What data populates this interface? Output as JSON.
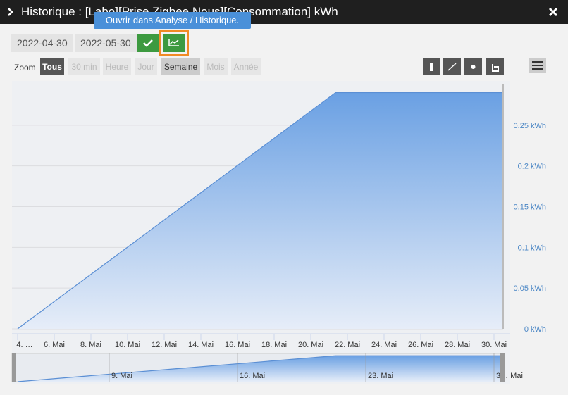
{
  "dialog": {
    "title": "Historique : [Labo][Prise Zigbee Nous][Consommation] kWh",
    "date_start": "2022-04-30",
    "date_end": "2022-05-30",
    "tooltip": "Ouvrir dans Analyse / Historique.",
    "zoom_label": "Zoom",
    "zoom_buttons": [
      "Tous",
      "30 min",
      "Heure",
      "Jour",
      "Semaine",
      "Mois",
      "Année"
    ]
  },
  "chart_data": {
    "type": "area",
    "color": "#5b8fd4",
    "x": [
      4,
      21.35,
      30.5
    ],
    "values": [
      0,
      0.29,
      0.29
    ],
    "xlim": [
      4,
      30.5
    ],
    "xticks": [
      {
        "value": 4,
        "label": "4. …"
      },
      {
        "value": 6,
        "label": "6. Mai"
      },
      {
        "value": 8,
        "label": "8. Mai"
      },
      {
        "value": 10,
        "label": "10. Mai"
      },
      {
        "value": 12,
        "label": "12. Mai"
      },
      {
        "value": 14,
        "label": "14. Mai"
      },
      {
        "value": 16,
        "label": "16. Mai"
      },
      {
        "value": 18,
        "label": "18. Mai"
      },
      {
        "value": 20,
        "label": "20. Mai"
      },
      {
        "value": 22,
        "label": "22. Mai"
      },
      {
        "value": 24,
        "label": "24. Mai"
      },
      {
        "value": 26,
        "label": "26. Mai"
      },
      {
        "value": 28,
        "label": "28. Mai"
      },
      {
        "value": 30,
        "label": "30. Mai"
      }
    ],
    "ylim": [
      0,
      0.3
    ],
    "yticks": [
      {
        "value": 0,
        "label": "0 kWh"
      },
      {
        "value": 0.05,
        "label": "0.05 kWh"
      },
      {
        "value": 0.1,
        "label": "0.1 kWh"
      },
      {
        "value": 0.15,
        "label": "0.15 kWh"
      },
      {
        "value": 0.2,
        "label": "0.2 kWh"
      },
      {
        "value": 0.25,
        "label": "0.25 kWh"
      }
    ],
    "grid": true,
    "navigator_ticks": [
      {
        "value": 9,
        "label": "9. Mai"
      },
      {
        "value": 16,
        "label": "16. Mai"
      },
      {
        "value": 23,
        "label": "23. Mai"
      },
      {
        "value": 30,
        "label": "3… Mai"
      }
    ]
  }
}
